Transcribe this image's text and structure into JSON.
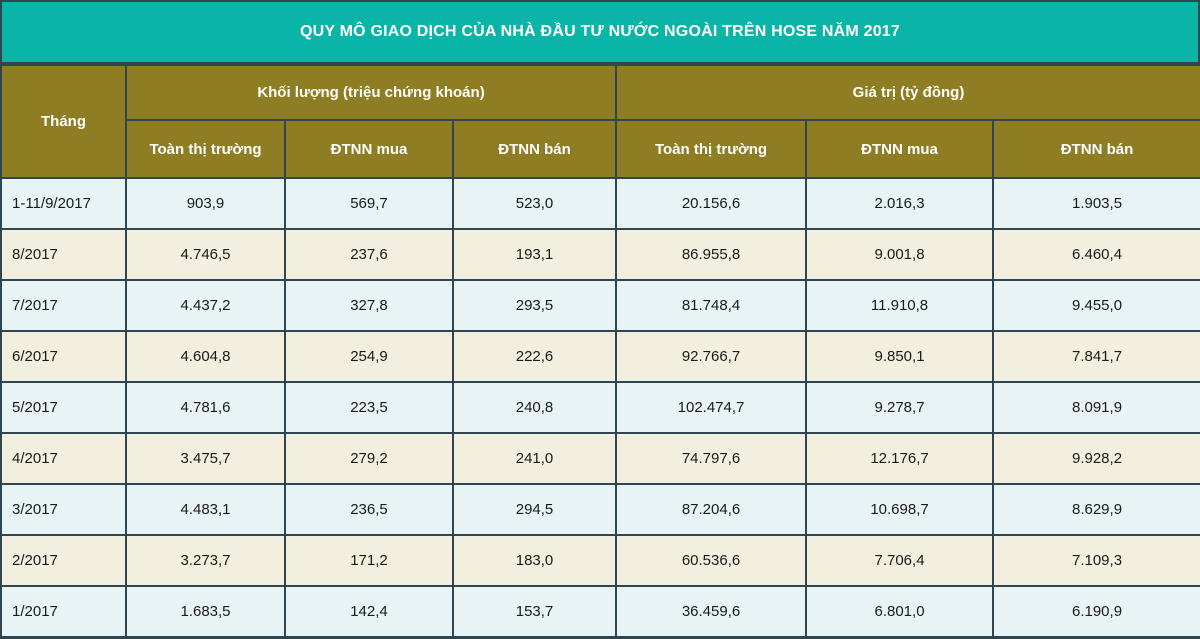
{
  "chart_data": {
    "type": "table",
    "title": "QUY MÔ GIAO DỊCH CỦA NHÀ ĐẦU TƯ NƯỚC NGOÀI TRÊN HOSE NĂM 2017",
    "header": {
      "month": "Tháng",
      "group_volume": "Khối lượng (triệu chứng khoán)",
      "group_value": "Giá trị (tỷ đồng)",
      "sub": [
        "Toàn thị trường",
        "ĐTNN mua",
        "ĐTNN bán",
        "Toàn thị trường",
        "ĐTNN mua",
        "ĐTNN bán"
      ]
    },
    "rows": [
      [
        "1-11/9/2017",
        "903,9",
        "569,7",
        "523,0",
        "20.156,6",
        "2.016,3",
        "1.903,5"
      ],
      [
        "8/2017",
        "4.746,5",
        "237,6",
        "193,1",
        "86.955,8",
        "9.001,8",
        "6.460,4"
      ],
      [
        "7/2017",
        "4.437,2",
        "327,8",
        "293,5",
        "81.748,4",
        "11.910,8",
        "9.455,0"
      ],
      [
        "6/2017",
        "4.604,8",
        "254,9",
        "222,6",
        "92.766,7",
        "9.850,1",
        "7.841,7"
      ],
      [
        "5/2017",
        "4.781,6",
        "223,5",
        "240,8",
        "102.474,7",
        "9.278,7",
        "8.091,9"
      ],
      [
        "4/2017",
        "3.475,7",
        "279,2",
        "241,0",
        "74.797,6",
        "12.176,7",
        "9.928,2"
      ],
      [
        "3/2017",
        "4.483,1",
        "236,5",
        "294,5",
        "87.204,6",
        "10.698,7",
        "8.629,9"
      ],
      [
        "2/2017",
        "3.273,7",
        "171,2",
        "183,0",
        "60.536,6",
        "7.706,4",
        "7.109,3"
      ],
      [
        "1/2017",
        "1.683,5",
        "142,4",
        "153,7",
        "36.459,6",
        "6.801,0",
        "6.190,9"
      ]
    ]
  },
  "colors": {
    "title_bg": "#0ab4a6",
    "header_bg": "#8e7d22",
    "row_light_blue": "#e8f3f6",
    "row_light_beige": "#f3efdf",
    "border": "#2f4550"
  }
}
